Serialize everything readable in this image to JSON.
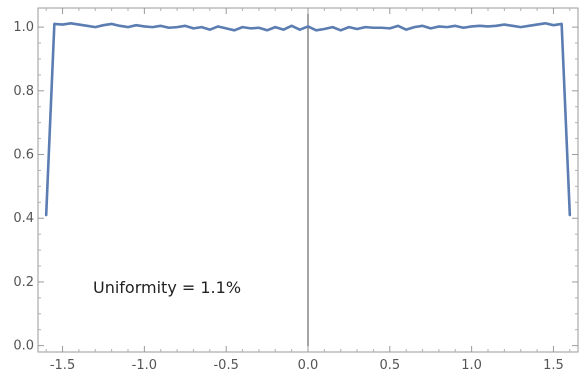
{
  "chart_data": {
    "type": "line",
    "title": "",
    "xlabel": "",
    "ylabel": "",
    "xlim": [
      -1.65,
      1.65
    ],
    "ylim": [
      -0.02,
      1.06
    ],
    "x_ticks": [
      -1.5,
      -1.0,
      -0.5,
      0.0,
      0.5,
      1.0,
      1.5
    ],
    "x_tick_labels": [
      "-1.5",
      "-1.0",
      "-0.5",
      "0.0",
      "0.5",
      "1.0",
      "1.5"
    ],
    "y_ticks": [
      0.0,
      0.2,
      0.4,
      0.6,
      0.8,
      1.0
    ],
    "y_tick_labels": [
      "0.0",
      "0.2",
      "0.4",
      "0.6",
      "0.8",
      "1.0"
    ],
    "grid": false,
    "annotation": "Uniformity = 1.1%",
    "series": [
      {
        "color": "#5b7db1",
        "x": [
          -1.6,
          -1.55,
          -1.5,
          -1.45,
          -1.4,
          -1.35,
          -1.3,
          -1.25,
          -1.2,
          -1.15,
          -1.1,
          -1.05,
          -1.0,
          -0.95,
          -0.9,
          -0.85,
          -0.8,
          -0.75,
          -0.7,
          -0.65,
          -0.6,
          -0.55,
          -0.5,
          -0.45,
          -0.4,
          -0.35,
          -0.3,
          -0.25,
          -0.2,
          -0.15,
          -0.1,
          -0.05,
          0.0,
          0.05,
          0.1,
          0.15,
          0.2,
          0.25,
          0.3,
          0.35,
          0.4,
          0.45,
          0.5,
          0.55,
          0.6,
          0.65,
          0.7,
          0.75,
          0.8,
          0.85,
          0.9,
          0.95,
          1.0,
          1.05,
          1.1,
          1.15,
          1.2,
          1.25,
          1.3,
          1.35,
          1.4,
          1.45,
          1.5,
          1.55,
          1.6
        ],
        "y": [
          0.41,
          1.01,
          1.008,
          1.012,
          1.008,
          1.004,
          1.0,
          1.006,
          1.01,
          1.004,
          1.0,
          1.006,
          1.002,
          1.0,
          1.004,
          0.998,
          1.0,
          1.004,
          0.996,
          1.0,
          0.992,
          1.002,
          0.996,
          0.99,
          1.0,
          0.996,
          0.998,
          0.99,
          1.0,
          0.992,
          1.004,
          0.992,
          1.002,
          0.99,
          0.994,
          1.0,
          0.99,
          1.0,
          0.994,
          1.0,
          0.998,
          0.998,
          0.996,
          1.004,
          0.992,
          1.0,
          1.004,
          0.996,
          1.002,
          1.0,
          1.004,
          0.998,
          1.002,
          1.004,
          1.002,
          1.004,
          1.008,
          1.004,
          1.0,
          1.004,
          1.008,
          1.012,
          1.006,
          1.01,
          0.41
        ]
      }
    ]
  }
}
